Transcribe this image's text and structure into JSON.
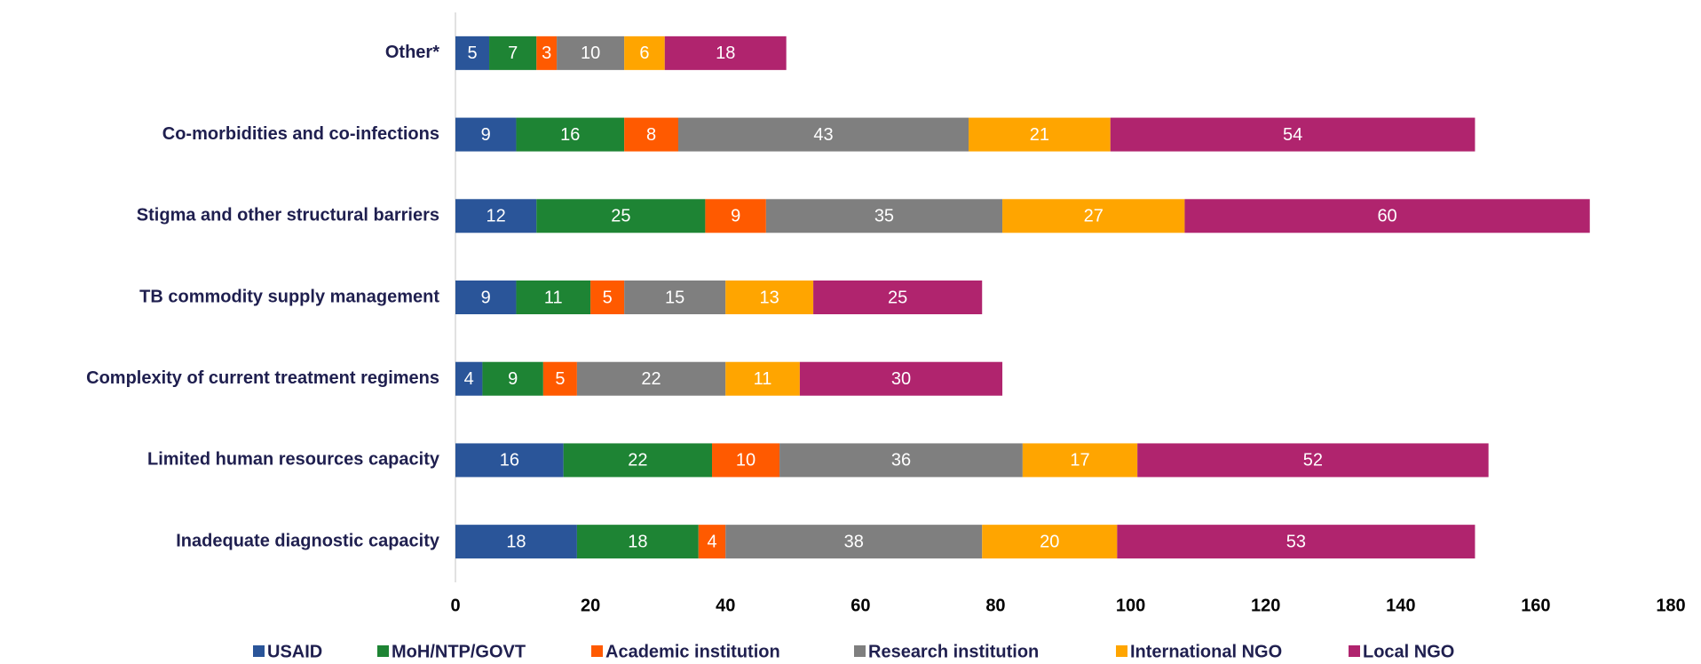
{
  "chart_data": {
    "type": "stacked-barh",
    "categories": [
      "Other*",
      "Co-morbidities and co-infections",
      "Stigma and other structural barriers",
      "TB commodity supply management",
      "Complexity of current treatment regimens",
      "Limited human resources capacity",
      "Inadequate diagnostic capacity"
    ],
    "series": [
      {
        "name": "USAID",
        "color": "#2a5599",
        "values": [
          5,
          9,
          12,
          9,
          4,
          16,
          18
        ]
      },
      {
        "name": "MoH/NTP/GOVT",
        "color": "#1e8434",
        "values": [
          7,
          16,
          25,
          11,
          9,
          22,
          18
        ]
      },
      {
        "name": "Academic institution",
        "color": "#ff5a00",
        "values": [
          3,
          8,
          9,
          5,
          5,
          10,
          4
        ]
      },
      {
        "name": "Research institution",
        "color": "#7f7f7f",
        "values": [
          10,
          43,
          35,
          15,
          22,
          36,
          38
        ]
      },
      {
        "name": "International NGO",
        "color": "#ffa500",
        "values": [
          6,
          21,
          27,
          13,
          11,
          17,
          20
        ]
      },
      {
        "name": "Local NGO",
        "color": "#b0246e",
        "values": [
          18,
          54,
          60,
          25,
          30,
          52,
          53
        ]
      }
    ],
    "xlim": [
      0,
      180
    ],
    "xticks": [
      0,
      20,
      40,
      60,
      80,
      100,
      120,
      140,
      160,
      180
    ],
    "legend": "bottom"
  }
}
